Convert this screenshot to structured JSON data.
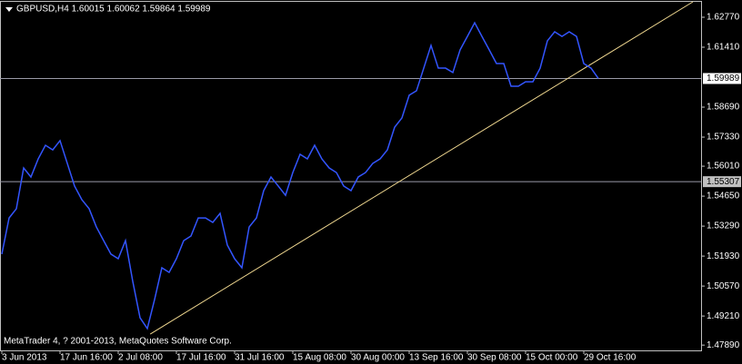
{
  "chart_data": {
    "type": "line",
    "title": "GBPUSD,H4 1.60015 1.60062 1.59864 1.59989",
    "annotation": "MetaTrader 4, ? 2001-2013, MetaQuotes Software Corp.",
    "categories": [
      "3 Jun 2013",
      null,
      null,
      null,
      null,
      null,
      null,
      null,
      "17 Jun 16:00",
      null,
      null,
      null,
      null,
      null,
      null,
      null,
      "2 Jul 08:00",
      null,
      null,
      null,
      null,
      null,
      null,
      null,
      "17 Jul 16:00",
      null,
      null,
      null,
      null,
      null,
      null,
      null,
      "31 Jul 16:00",
      null,
      null,
      null,
      null,
      null,
      null,
      null,
      "15 Aug 08:00",
      null,
      null,
      null,
      null,
      null,
      null,
      null,
      "30 Aug 00:00",
      null,
      null,
      null,
      null,
      null,
      null,
      null,
      "13 Sep 16:00",
      null,
      null,
      null,
      null,
      null,
      null,
      null,
      "30 Sep 08:00",
      null,
      null,
      null,
      null,
      null,
      null,
      null,
      "15 Oct 00:00",
      null,
      null,
      null,
      null,
      null,
      null,
      null,
      "29 Oct 16:00",
      null,
      null
    ],
    "series": [
      {
        "name": "GBPUSD,H4",
        "color": "#3355ff",
        "values": [
          1.5202,
          1.5366,
          1.5408,
          1.5593,
          1.5552,
          1.5634,
          1.5696,
          1.5675,
          1.5717,
          1.5614,
          1.5511,
          1.5449,
          1.5408,
          1.5325,
          1.5263,
          1.5202,
          1.5181,
          1.5263,
          1.5078,
          1.4913,
          1.4864,
          1.4996,
          1.514,
          1.5119,
          1.5181,
          1.5263,
          1.5284,
          1.5366,
          1.5366,
          1.5346,
          1.5387,
          1.5243,
          1.5181,
          1.514,
          1.5325,
          1.5366,
          1.549,
          1.5552,
          1.5511,
          1.5469,
          1.5572,
          1.5655,
          1.5634,
          1.5696,
          1.5634,
          1.5593,
          1.5572,
          1.5511,
          1.549,
          1.5552,
          1.5572,
          1.5614,
          1.5634,
          1.5675,
          1.5778,
          1.582,
          1.5923,
          1.5943,
          1.6046,
          1.6149,
          1.6046,
          1.6046,
          1.6026,
          1.6129,
          1.619,
          1.6252,
          1.619,
          1.6129,
          1.6067,
          1.6067,
          1.5964,
          1.5964,
          1.5984,
          1.5984,
          1.6046,
          1.617,
          1.6211,
          1.619,
          1.6211,
          1.619,
          1.6067,
          1.6046,
          1.5999
        ]
      }
    ],
    "ylim": [
      1.4765,
      1.6347
    ],
    "yticks": [
      {
        "value": 1.6277,
        "label": "1.62770"
      },
      {
        "value": 1.6141,
        "label": "1.61410"
      },
      {
        "value": 1.5869,
        "label": "1.58690"
      },
      {
        "value": 1.5733,
        "label": "1.57330"
      },
      {
        "value": 1.5601,
        "label": "1.56010"
      },
      {
        "value": 1.5465,
        "label": "1.54650"
      },
      {
        "value": 1.5329,
        "label": "1.53290"
      },
      {
        "value": 1.5193,
        "label": "1.51930"
      },
      {
        "value": 1.5057,
        "label": "1.50570"
      },
      {
        "value": 1.4921,
        "label": "1.49210"
      },
      {
        "value": 1.4789,
        "label": "1.47890"
      }
    ],
    "hlines": [
      {
        "value": 1.59989,
        "label": "1.59989",
        "color": "#9a9aa8"
      },
      {
        "value": 1.55307,
        "label": "1.55307",
        "color": "#9a9aa8"
      }
    ],
    "trendline": {
      "color": "#f0d890",
      "start": [
        20.4,
        1.4839
      ],
      "end": [
        95,
        1.6347
      ]
    },
    "grid": false
  }
}
